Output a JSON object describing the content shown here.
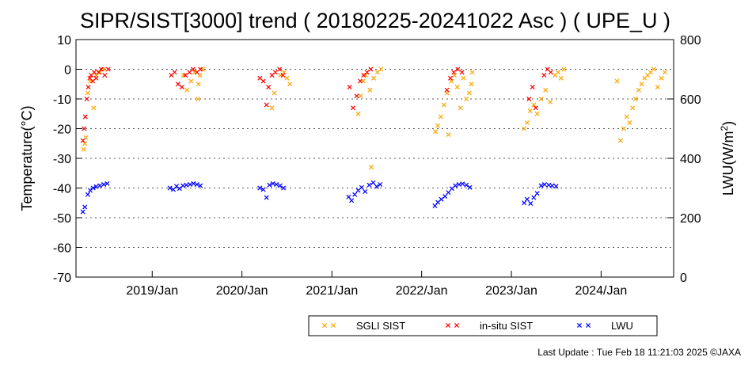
{
  "chart_data": {
    "type": "scatter",
    "title": "SIPR/SIST[3000] trend ( 20180225-20241022 Asc ) ( UPE_U )",
    "ylabel": "Temperature(°C)",
    "y2label_main": "LWU(W/m",
    "y2label_sup": "2",
    "y2label_end": ")",
    "ylim": [
      -70,
      10
    ],
    "y2lim": [
      0,
      800
    ],
    "xlim": [
      "2018-02-25",
      "2024-10-22"
    ],
    "grid": "horizontal dotted",
    "legend_position": "bottom-right",
    "y_ticks": [
      {
        "value": 10,
        "label": "10"
      },
      {
        "value": 0,
        "label": "0"
      },
      {
        "value": -10,
        "label": "-10"
      },
      {
        "value": -20,
        "label": "-20"
      },
      {
        "value": -30,
        "label": "-30"
      },
      {
        "value": -40,
        "label": "-40"
      },
      {
        "value": -50,
        "label": "-50"
      },
      {
        "value": -60,
        "label": "-60"
      },
      {
        "value": -70,
        "label": "-70"
      }
    ],
    "y2_ticks": [
      {
        "value": 800,
        "label": "800"
      },
      {
        "value": 600,
        "label": "600"
      },
      {
        "value": 400,
        "label": "400"
      },
      {
        "value": 200,
        "label": "200"
      },
      {
        "value": 0,
        "label": "0"
      }
    ],
    "x_ticks": [
      {
        "date": "2019-01-01",
        "label": "2019/Jan"
      },
      {
        "date": "2020-01-01",
        "label": "2020/Jan"
      },
      {
        "date": "2021-01-01",
        "label": "2021/Jan"
      },
      {
        "date": "2022-01-01",
        "label": "2022/Jan"
      },
      {
        "date": "2023-01-01",
        "label": "2023/Jan"
      },
      {
        "date": "2024-01-01",
        "label": "2024/Jan"
      }
    ],
    "series": [
      {
        "name": "SGLI SIST",
        "color": "#ffa500",
        "axis": "left",
        "points": [
          [
            "2018-03-28",
            -27
          ],
          [
            "2018-04-02",
            -25
          ],
          [
            "2018-04-06",
            -23
          ],
          [
            "2018-04-14",
            -8
          ],
          [
            "2018-04-24",
            -4
          ],
          [
            "2018-05-08",
            -13
          ],
          [
            "2018-05-18",
            -2
          ],
          [
            "2018-06-02",
            -1
          ],
          [
            "2018-06-18",
            0
          ],
          [
            "2019-05-08",
            -2
          ],
          [
            "2019-05-22",
            -7
          ],
          [
            "2019-06-08",
            -4
          ],
          [
            "2019-06-22",
            -1
          ],
          [
            "2019-07-06",
            -10
          ],
          [
            "2019-07-08",
            -5
          ],
          [
            "2019-07-14",
            -2
          ],
          [
            "2019-07-26",
            0
          ],
          [
            "2020-05-02",
            -13
          ],
          [
            "2020-05-12",
            -8
          ],
          [
            "2020-06-06",
            -2
          ],
          [
            "2020-06-20",
            -1
          ],
          [
            "2020-07-02",
            -3
          ],
          [
            "2020-07-14",
            -5
          ],
          [
            "2021-04-18",
            -15
          ],
          [
            "2021-04-28",
            -9
          ],
          [
            "2021-05-08",
            -4
          ],
          [
            "2021-05-18",
            -2
          ],
          [
            "2021-06-05",
            -7
          ],
          [
            "2021-06-10",
            -33
          ],
          [
            "2021-06-20",
            -3
          ],
          [
            "2021-07-05",
            -1
          ],
          [
            "2021-07-20",
            0
          ],
          [
            "2022-02-26",
            -21
          ],
          [
            "2022-03-08",
            -19
          ],
          [
            "2022-03-20",
            -16
          ],
          [
            "2022-04-02",
            -12
          ],
          [
            "2022-04-14",
            -8
          ],
          [
            "2022-04-20",
            -22
          ],
          [
            "2022-05-02",
            -4
          ],
          [
            "2022-05-14",
            -2
          ],
          [
            "2022-05-26",
            -6
          ],
          [
            "2022-06-08",
            -13
          ],
          [
            "2022-06-20",
            -3
          ],
          [
            "2022-07-02",
            -10
          ],
          [
            "2022-07-14",
            -8
          ],
          [
            "2022-07-22",
            -5
          ],
          [
            "2022-07-26",
            -1
          ],
          [
            "2023-02-22",
            -20
          ],
          [
            "2023-03-06",
            -18
          ],
          [
            "2023-03-18",
            -14
          ],
          [
            "2023-04-02",
            -12
          ],
          [
            "2023-04-16",
            -15
          ],
          [
            "2023-05-02",
            -10
          ],
          [
            "2023-05-20",
            -7
          ],
          [
            "2023-06-08",
            -11
          ],
          [
            "2023-06-28",
            -2
          ],
          [
            "2023-07-10",
            -1
          ],
          [
            "2023-07-22",
            -3
          ],
          [
            "2023-08-02",
            0
          ],
          [
            "2024-03-06",
            -4
          ],
          [
            "2024-03-20",
            -24
          ],
          [
            "2024-04-02",
            -20
          ],
          [
            "2024-04-14",
            -16
          ],
          [
            "2024-04-26",
            -18
          ],
          [
            "2024-05-08",
            -13
          ],
          [
            "2024-05-20",
            -10
          ],
          [
            "2024-06-02",
            -7
          ],
          [
            "2024-06-14",
            -5
          ],
          [
            "2024-06-26",
            -3
          ],
          [
            "2024-07-08",
            -2
          ],
          [
            "2024-07-20",
            -1
          ],
          [
            "2024-08-02",
            0
          ],
          [
            "2024-08-18",
            -6
          ],
          [
            "2024-09-02",
            -3
          ],
          [
            "2024-09-16",
            -1
          ]
        ]
      },
      {
        "name": "in-situ SIST",
        "color": "#ff0000",
        "axis": "left",
        "points": [
          [
            "2018-03-25",
            -24
          ],
          [
            "2018-03-30",
            -20
          ],
          [
            "2018-04-04",
            -16
          ],
          [
            "2018-04-10",
            -10
          ],
          [
            "2018-04-16",
            -6
          ],
          [
            "2018-04-22",
            -3
          ],
          [
            "2018-04-28",
            -2
          ],
          [
            "2018-05-04",
            -4
          ],
          [
            "2018-05-10",
            -1
          ],
          [
            "2018-05-18",
            -3
          ],
          [
            "2018-05-28",
            -1
          ],
          [
            "2018-06-08",
            0
          ],
          [
            "2018-06-22",
            -2
          ],
          [
            "2018-07-06",
            0
          ],
          [
            "2019-03-20",
            -2
          ],
          [
            "2019-04-02",
            -1
          ],
          [
            "2019-04-16",
            -5
          ],
          [
            "2019-05-02",
            -6
          ],
          [
            "2019-05-16",
            -2
          ],
          [
            "2019-06-02",
            -1
          ],
          [
            "2019-06-16",
            0
          ],
          [
            "2019-07-02",
            -1
          ],
          [
            "2019-07-16",
            0
          ],
          [
            "2020-03-14",
            -3
          ],
          [
            "2020-03-28",
            -4
          ],
          [
            "2020-04-10",
            -12
          ],
          [
            "2020-04-18",
            -6
          ],
          [
            "2020-05-02",
            -2
          ],
          [
            "2020-05-16",
            -1
          ],
          [
            "2020-06-02",
            0
          ],
          [
            "2020-06-16",
            -2
          ],
          [
            "2021-03-14",
            -6
          ],
          [
            "2021-03-28",
            -13
          ],
          [
            "2021-04-12",
            -9
          ],
          [
            "2021-04-26",
            -4
          ],
          [
            "2021-05-10",
            -2
          ],
          [
            "2021-05-24",
            -1
          ],
          [
            "2021-06-08",
            0
          ],
          [
            "2022-04-14",
            -7
          ],
          [
            "2022-04-28",
            -3
          ],
          [
            "2022-05-12",
            -1
          ],
          [
            "2022-05-28",
            0
          ],
          [
            "2022-06-14",
            -1
          ],
          [
            "2023-03-14",
            -10
          ],
          [
            "2023-03-28",
            -6
          ],
          [
            "2023-04-10",
            -13
          ],
          [
            "2023-05-14",
            -2
          ],
          [
            "2023-05-28",
            0
          ],
          [
            "2023-06-10",
            -1
          ]
        ]
      },
      {
        "name": "LWU",
        "color": "#0000ff",
        "axis": "right",
        "points": [
          [
            "2018-03-25",
            220
          ],
          [
            "2018-04-02",
            236
          ],
          [
            "2018-04-14",
            278
          ],
          [
            "2018-04-24",
            292
          ],
          [
            "2018-05-06",
            300
          ],
          [
            "2018-05-18",
            305
          ],
          [
            "2018-06-02",
            308
          ],
          [
            "2018-06-18",
            312
          ],
          [
            "2018-07-02",
            315
          ],
          [
            "2019-03-14",
            300
          ],
          [
            "2019-03-28",
            295
          ],
          [
            "2019-04-10",
            306
          ],
          [
            "2019-04-22",
            298
          ],
          [
            "2019-05-06",
            308
          ],
          [
            "2019-05-20",
            310
          ],
          [
            "2019-06-04",
            312
          ],
          [
            "2019-06-18",
            315
          ],
          [
            "2019-07-02",
            312
          ],
          [
            "2019-07-16",
            308
          ],
          [
            "2020-03-14",
            300
          ],
          [
            "2020-03-28",
            295
          ],
          [
            "2020-04-10",
            268
          ],
          [
            "2020-04-22",
            310
          ],
          [
            "2020-05-06",
            315
          ],
          [
            "2020-05-20",
            312
          ],
          [
            "2020-06-04",
            308
          ],
          [
            "2020-06-18",
            300
          ],
          [
            "2021-03-10",
            270
          ],
          [
            "2021-03-22",
            258
          ],
          [
            "2021-04-04",
            278
          ],
          [
            "2021-04-18",
            292
          ],
          [
            "2021-05-02",
            302
          ],
          [
            "2021-05-16",
            288
          ],
          [
            "2021-06-02",
            310
          ],
          [
            "2021-06-18",
            318
          ],
          [
            "2021-07-02",
            305
          ],
          [
            "2021-07-16",
            312
          ],
          [
            "2022-02-24",
            240
          ],
          [
            "2022-03-08",
            252
          ],
          [
            "2022-03-22",
            262
          ],
          [
            "2022-04-06",
            272
          ],
          [
            "2022-04-20",
            285
          ],
          [
            "2022-05-04",
            298
          ],
          [
            "2022-05-18",
            308
          ],
          [
            "2022-06-02",
            312
          ],
          [
            "2022-06-16",
            314
          ],
          [
            "2022-07-02",
            310
          ],
          [
            "2022-07-16",
            302
          ],
          [
            "2023-02-22",
            250
          ],
          [
            "2023-03-06",
            262
          ],
          [
            "2023-03-20",
            248
          ],
          [
            "2023-04-02",
            268
          ],
          [
            "2023-04-16",
            282
          ],
          [
            "2023-05-02",
            308
          ],
          [
            "2023-05-16",
            312
          ],
          [
            "2023-06-02",
            310
          ],
          [
            "2023-06-16",
            308
          ],
          [
            "2023-07-02",
            306
          ]
        ]
      }
    ],
    "footer": "Last Update : Tue Feb 18 11:21:03 2025  ©JAXA"
  }
}
